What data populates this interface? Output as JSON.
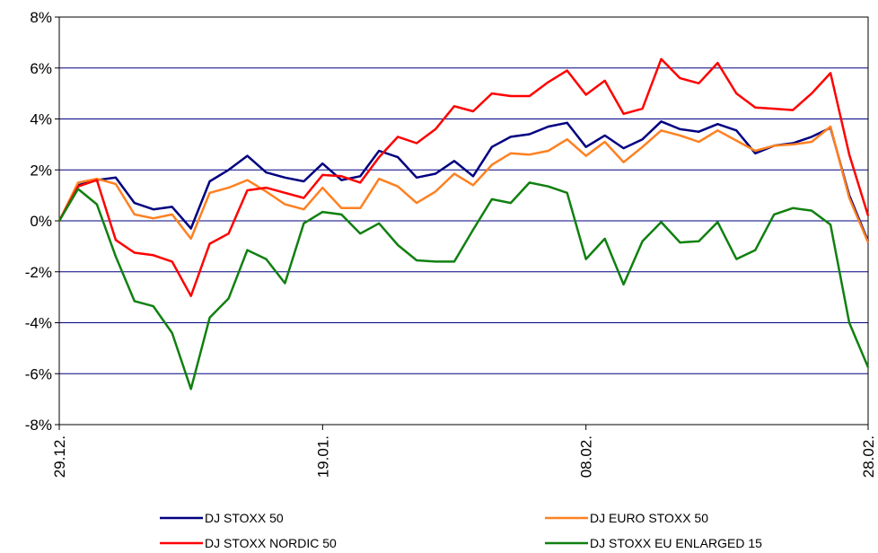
{
  "chart_data": {
    "type": "line",
    "categories": [
      "29.12.",
      null,
      null,
      null,
      null,
      null,
      null,
      null,
      null,
      null,
      null,
      null,
      null,
      null,
      "19.01.",
      null,
      null,
      null,
      null,
      null,
      null,
      null,
      null,
      null,
      null,
      null,
      null,
      null,
      "08.02.",
      null,
      null,
      null,
      null,
      null,
      null,
      null,
      null,
      null,
      null,
      null,
      null,
      null,
      null,
      "28.02."
    ],
    "series": [
      {
        "name": "DJ STOXX 50",
        "color": "#000080",
        "values": [
          0,
          1.4,
          1.6,
          1.7,
          0.7,
          0.45,
          0.55,
          -0.3,
          1.55,
          2.0,
          2.55,
          1.9,
          1.7,
          1.55,
          2.25,
          1.6,
          1.75,
          2.75,
          2.5,
          1.7,
          1.85,
          2.35,
          1.75,
          2.9,
          3.3,
          3.4,
          3.7,
          3.85,
          2.9,
          3.35,
          2.85,
          3.2,
          3.9,
          3.6,
          3.5,
          3.8,
          3.55,
          2.65,
          2.95,
          3.05,
          3.3,
          3.65,
          1.0,
          -0.8
        ]
      },
      {
        "name": "DJ EURO STOXX 50",
        "color": "#ff8020",
        "values": [
          0,
          1.5,
          1.65,
          1.45,
          0.25,
          0.1,
          0.25,
          -0.7,
          1.1,
          1.3,
          1.6,
          1.15,
          0.65,
          0.45,
          1.3,
          0.5,
          0.5,
          1.65,
          1.35,
          0.7,
          1.15,
          1.85,
          1.4,
          2.2,
          2.65,
          2.6,
          2.75,
          3.2,
          2.55,
          3.1,
          2.3,
          2.9,
          3.55,
          3.35,
          3.1,
          3.55,
          3.15,
          2.75,
          2.95,
          3.0,
          3.1,
          3.7,
          0.9,
          -0.85
        ]
      },
      {
        "name": "DJ STOXX NORDIC 50",
        "color": "#ff0000",
        "values": [
          0,
          1.35,
          1.6,
          -0.75,
          -1.25,
          -1.35,
          -1.6,
          -2.95,
          -0.9,
          -0.5,
          1.2,
          1.3,
          1.1,
          0.9,
          1.8,
          1.75,
          1.5,
          2.5,
          3.3,
          3.05,
          3.6,
          4.5,
          4.3,
          5.0,
          4.9,
          4.9,
          5.45,
          5.9,
          4.95,
          5.5,
          4.2,
          4.4,
          6.35,
          5.6,
          5.4,
          6.2,
          5.0,
          4.45,
          4.4,
          4.35,
          5.0,
          5.8,
          2.6,
          0.2
        ]
      },
      {
        "name": "DJ STOXX EU ENLARGED 15",
        "color": "#108010",
        "values": [
          0,
          1.25,
          0.65,
          -1.4,
          -3.15,
          -3.35,
          -4.4,
          -6.6,
          -3.8,
          -3.05,
          -1.15,
          -1.5,
          -2.45,
          -0.1,
          0.35,
          0.25,
          -0.5,
          -0.1,
          -0.95,
          -1.55,
          -1.6,
          -1.6,
          -0.35,
          0.85,
          0.7,
          1.5,
          1.35,
          1.1,
          -1.5,
          -0.7,
          -2.5,
          -0.8,
          -0.05,
          -0.85,
          -0.8,
          -0.05,
          -1.5,
          -1.15,
          0.25,
          0.5,
          0.4,
          -0.15,
          -4.0,
          -5.75
        ]
      }
    ],
    "ylim": [
      -8,
      8
    ],
    "yticks": [
      {
        "value": -8,
        "label": "-8%"
      },
      {
        "value": -6,
        "label": "-6%"
      },
      {
        "value": -4,
        "label": "-4%"
      },
      {
        "value": -2,
        "label": "-2%"
      },
      {
        "value": 0,
        "label": "0%"
      },
      {
        "value": 2,
        "label": "2%"
      },
      {
        "value": 4,
        "label": "4%"
      },
      {
        "value": 6,
        "label": "6%"
      },
      {
        "value": 8,
        "label": "8%"
      }
    ],
    "grid": true,
    "legend": "bottom"
  }
}
